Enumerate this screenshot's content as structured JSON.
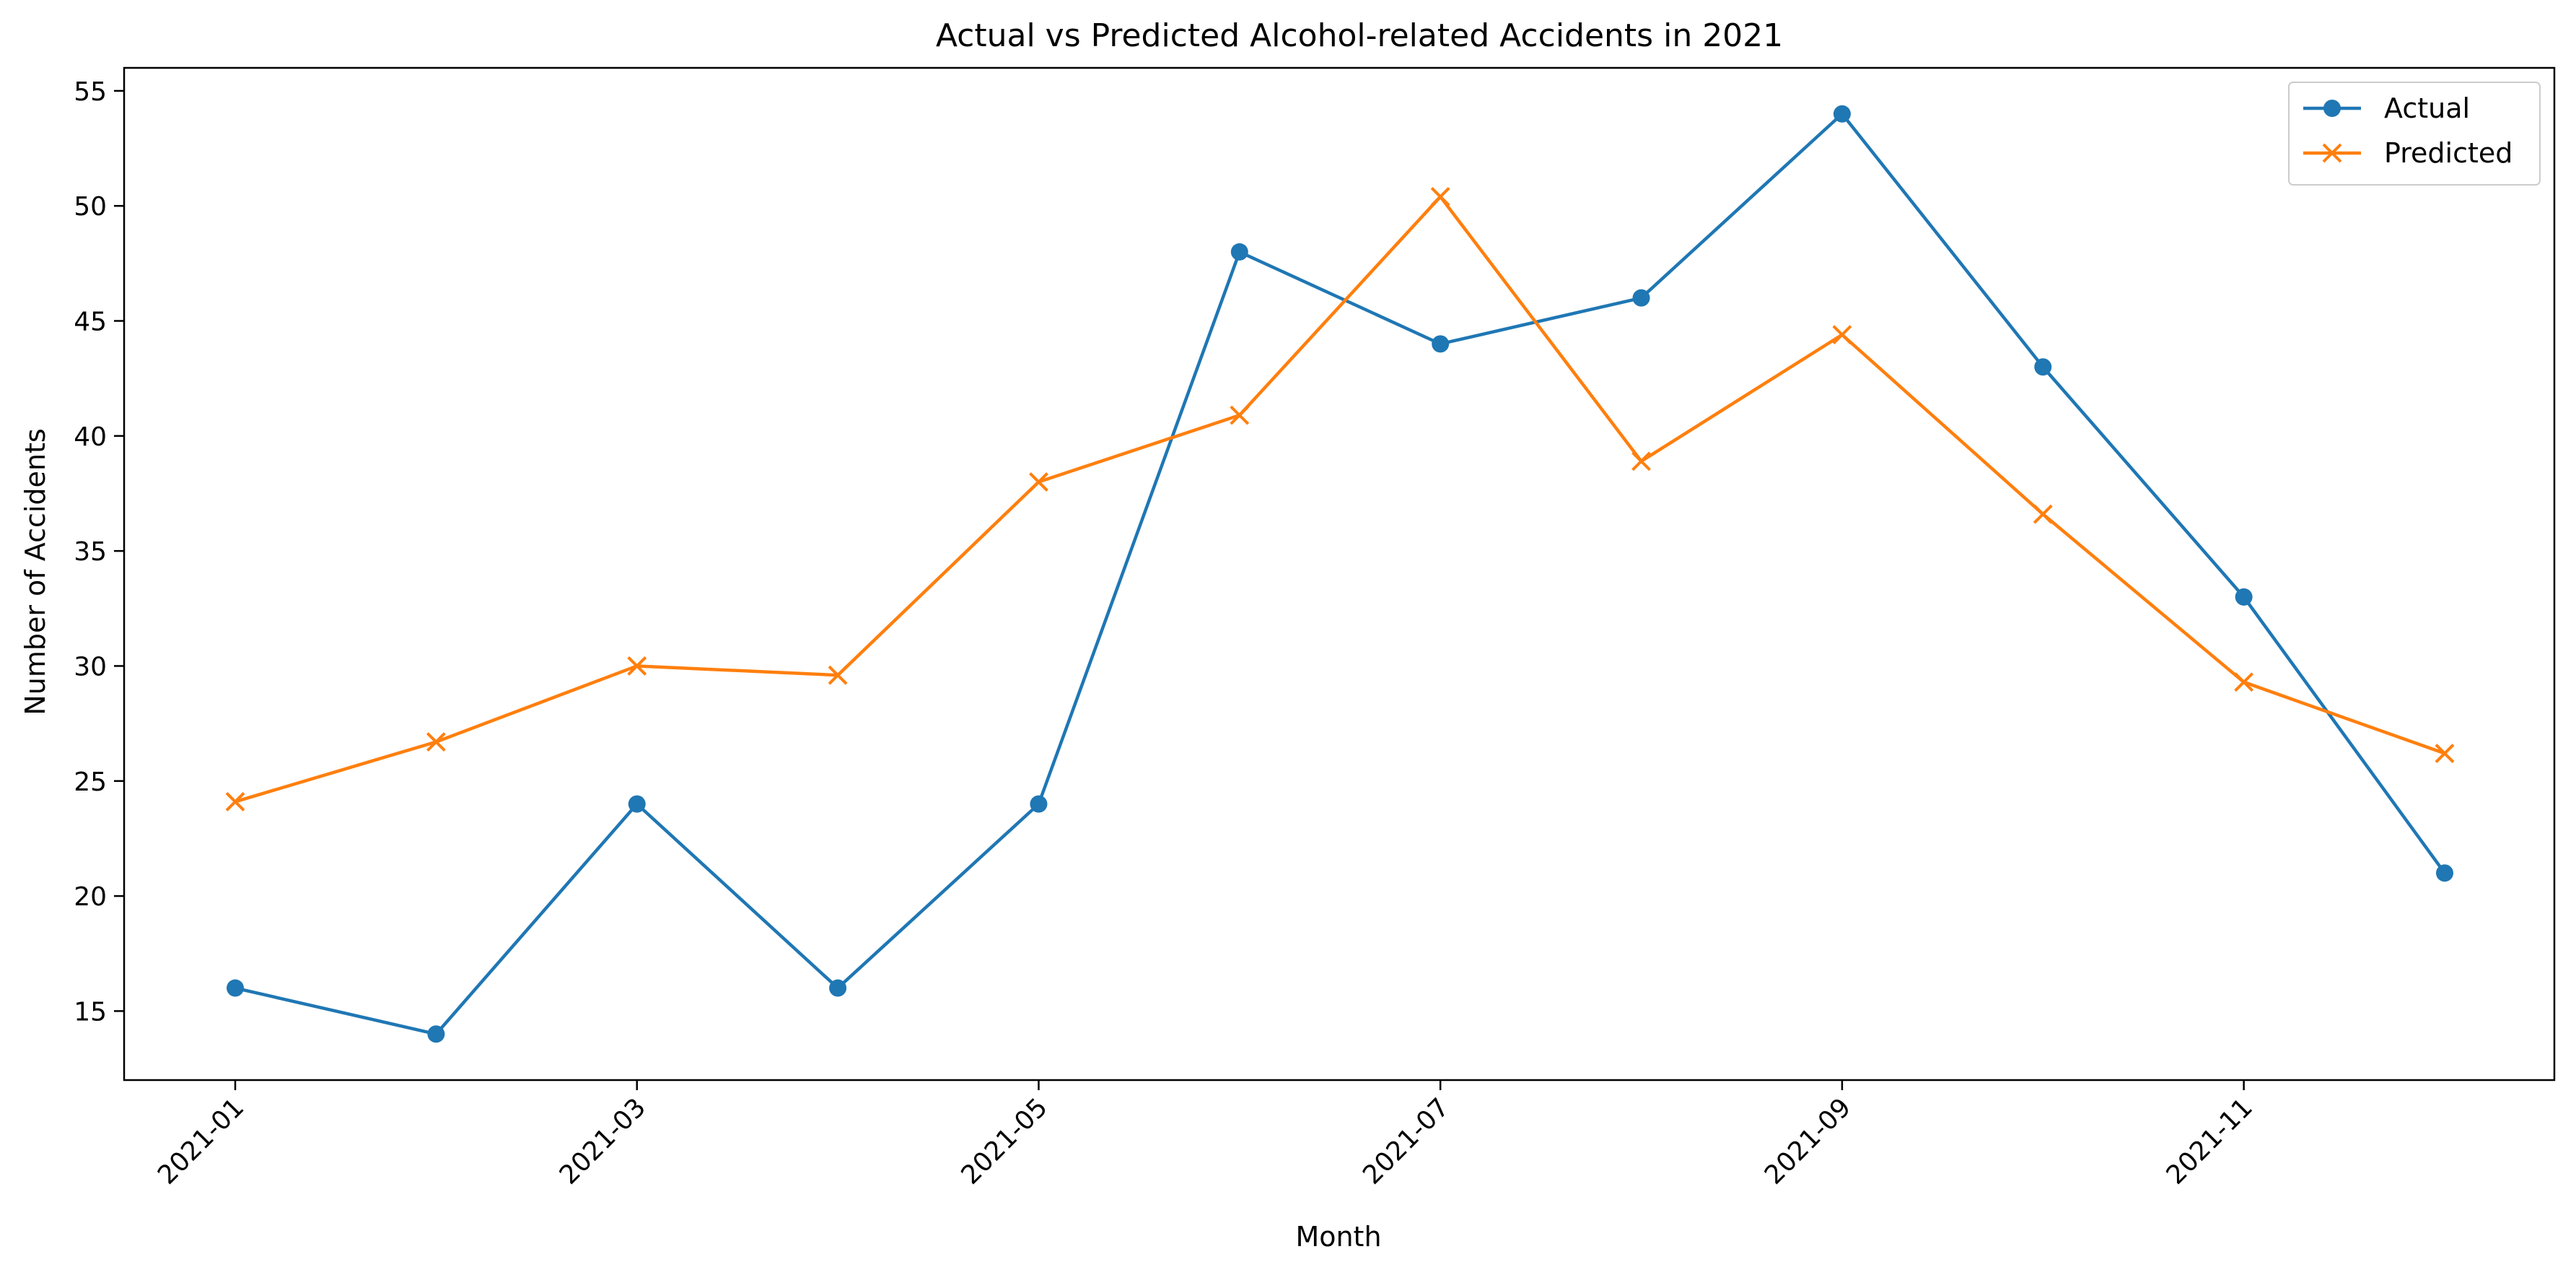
{
  "chart_data": {
    "type": "line",
    "title": "Actual vs Predicted Alcohol-related Accidents in 2021",
    "xlabel": "Month",
    "ylabel": "Number of Accidents",
    "x": [
      "2021-01",
      "2021-02",
      "2021-03",
      "2021-04",
      "2021-05",
      "2021-06",
      "2021-07",
      "2021-08",
      "2021-09",
      "2021-10",
      "2021-11",
      "2021-12"
    ],
    "x_tick_labels": [
      "2021-01",
      "2021-03",
      "2021-05",
      "2021-07",
      "2021-09",
      "2021-11"
    ],
    "y_ticks": [
      15,
      20,
      25,
      30,
      35,
      40,
      45,
      50,
      55
    ],
    "ylim": [
      12.0,
      56.0
    ],
    "grid": false,
    "legend_position": "top-right",
    "series": [
      {
        "name": "Actual",
        "color": "#1f77b4",
        "marker": "circle",
        "values": [
          16,
          14,
          24,
          16,
          24,
          48,
          44,
          46,
          54,
          43,
          33,
          21
        ]
      },
      {
        "name": "Predicted",
        "color": "#ff7f0e",
        "marker": "x",
        "values": [
          24.1,
          26.7,
          30.0,
          29.6,
          38.0,
          40.9,
          50.4,
          38.9,
          44.4,
          36.6,
          29.3,
          26.2
        ]
      }
    ]
  }
}
